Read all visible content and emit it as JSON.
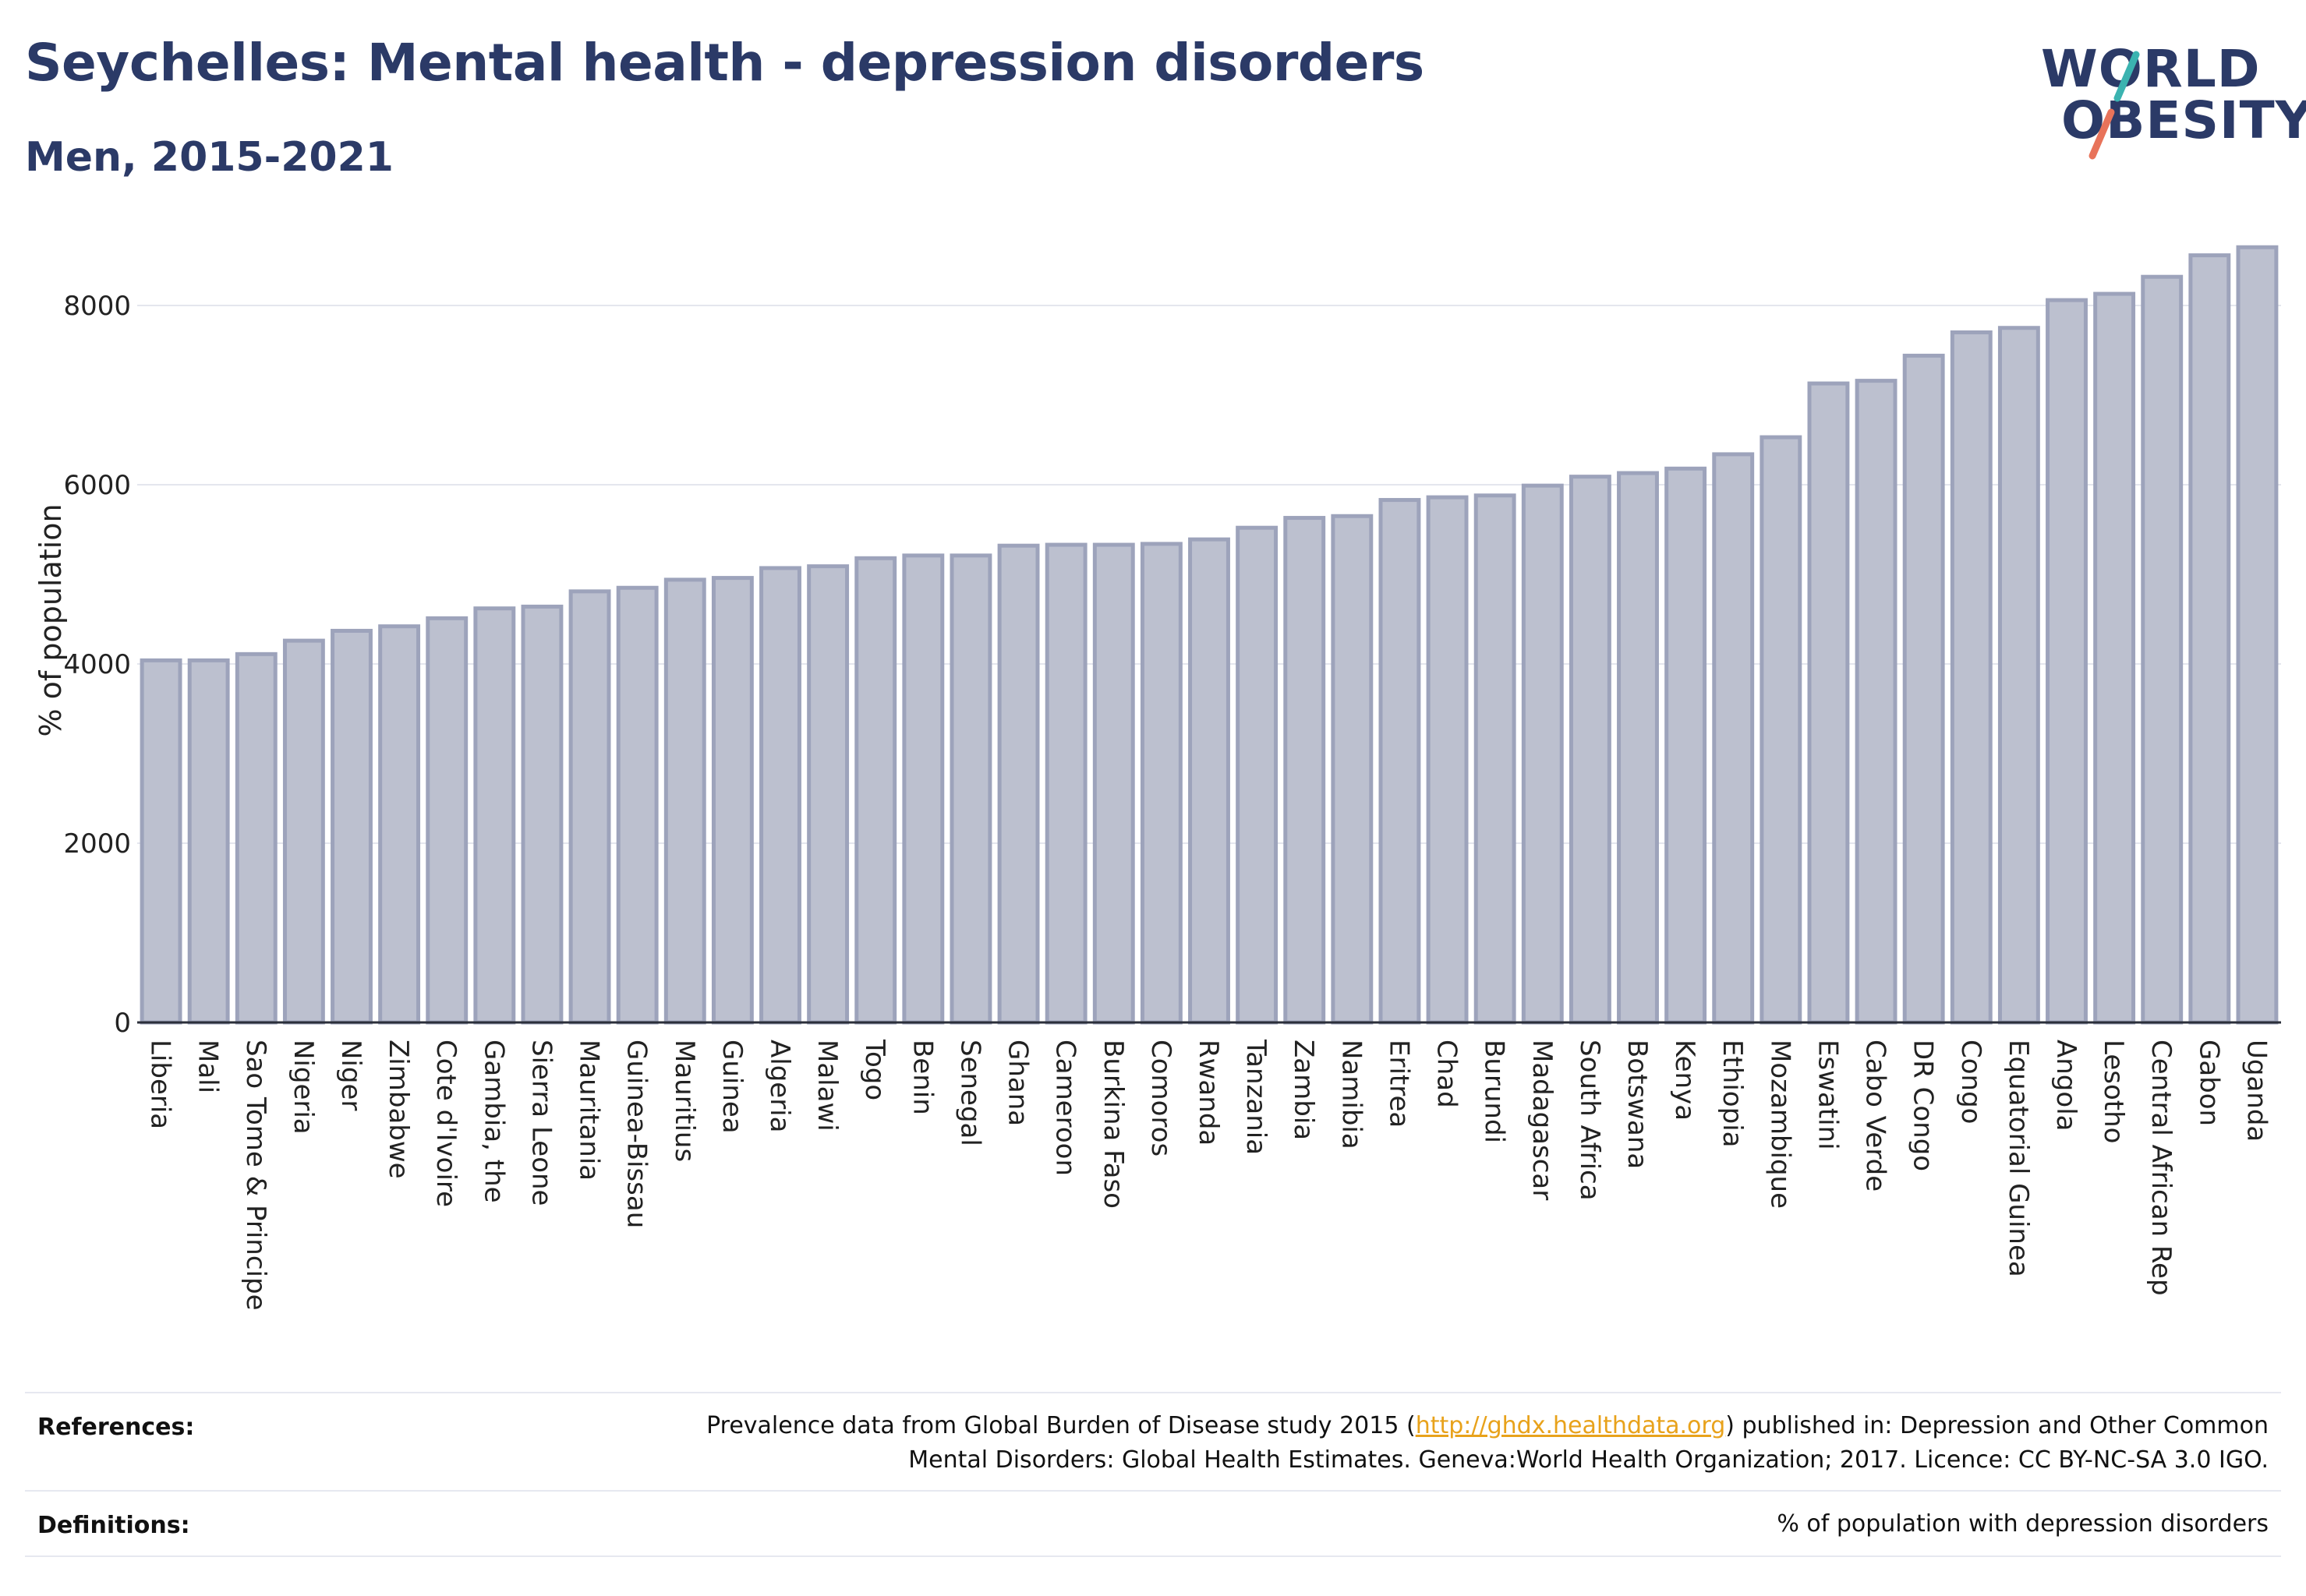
{
  "header": {
    "title": "Seychelles: Mental health - depression disorders",
    "subtitle": "Men, 2015-2021"
  },
  "logo": {
    "line1": "WORLD",
    "line2": "OBESITY",
    "colors": {
      "text": "#2b3a67",
      "slash_top": "#3bb3b0",
      "slash_bottom": "#e8735a"
    }
  },
  "chart_data": {
    "type": "bar",
    "title": "Seychelles: Mental health - depression disorders",
    "subtitle": "Men, 2015-2021",
    "ylabel": "% of population",
    "xlabel": "",
    "ylim": [
      0,
      8800
    ],
    "yticks": [
      0,
      2000,
      4000,
      6000,
      8000
    ],
    "grid": true,
    "bar_color": "#bcc0cf",
    "bar_edge_color": "#9da3bb",
    "categories": [
      "Liberia",
      "Mali",
      "Sao Tome & Principe",
      "Nigeria",
      "Niger",
      "Zimbabwe",
      "Cote d'Ivoire",
      "Gambia, the",
      "Sierra Leone",
      "Mauritania",
      "Guinea-Bissau",
      "Mauritius",
      "Guinea",
      "Algeria",
      "Malawi",
      "Togo",
      "Benin",
      "Senegal",
      "Ghana",
      "Cameroon",
      "Burkina Faso",
      "Comoros",
      "Rwanda",
      "Tanzania",
      "Zambia",
      "Namibia",
      "Eritrea",
      "Chad",
      "Burundi",
      "Madagascar",
      "South Africa",
      "Botswana",
      "Kenya",
      "Ethiopia",
      "Mozambique",
      "Eswatini",
      "Cabo Verde",
      "DR Congo",
      "Congo",
      "Equatorial Guinea",
      "Angola",
      "Lesotho",
      "Central African Rep",
      "Gabon",
      "Uganda"
    ],
    "values": [
      4040,
      4040,
      4110,
      4260,
      4370,
      4420,
      4510,
      4620,
      4640,
      4810,
      4850,
      4940,
      4960,
      5070,
      5090,
      5180,
      5210,
      5210,
      5320,
      5330,
      5330,
      5340,
      5390,
      5520,
      5630,
      5650,
      5830,
      5860,
      5880,
      5990,
      6090,
      6130,
      6180,
      6340,
      6530,
      7130,
      7160,
      7440,
      7700,
      7750,
      8060,
      8130,
      8320,
      8560,
      8650
    ]
  },
  "footer": {
    "references_label": "References:",
    "references_text_1": "Prevalence data from Global Burden of Disease study 2015 (",
    "references_link": "http://ghdx.healthdata.org",
    "references_text_2": ") published in: Depression and Other Common",
    "references_text_3": "Mental Disorders: Global Health Estimates. Geneva:World Health Organization; 2017. Licence: CC BY-NC-SA 3.0 IGO.",
    "definitions_label": "Definitions:",
    "definitions_text": "% of population with depression disorders"
  }
}
